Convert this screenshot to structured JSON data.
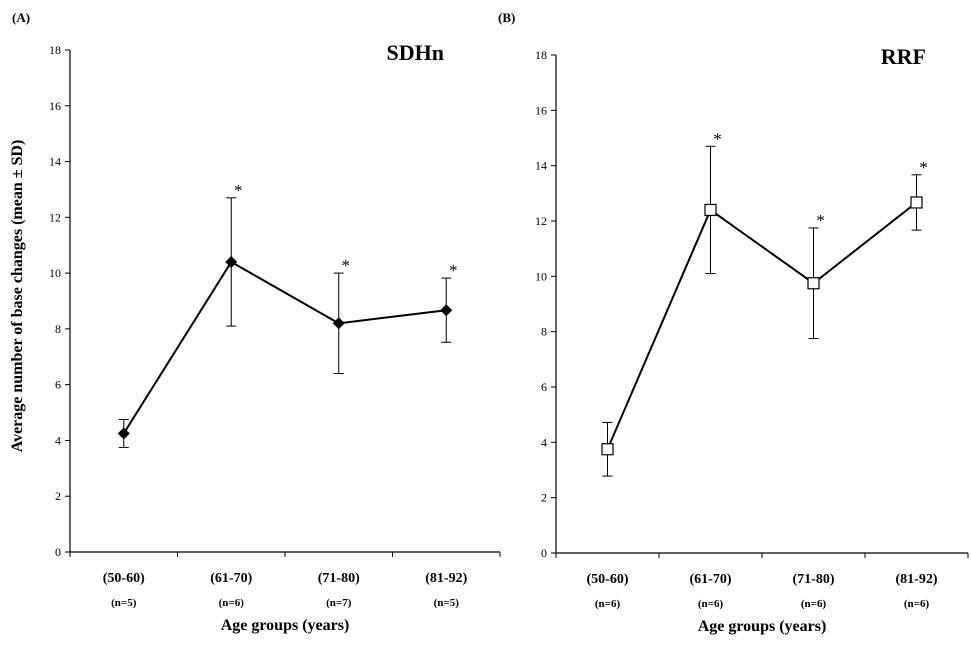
{
  "y_axis_title": "Average number of base changes (mean ± SD)",
  "chart_data": [
    {
      "type": "line",
      "panel_label": "(A)",
      "title": "SDHn",
      "xlabel": "Age groups (years)",
      "ylabel": "Average number of base changes (mean ± SD)",
      "categories": [
        "(50-60)",
        "(61-70)",
        "(71-80)",
        "(81-92)"
      ],
      "sample_sizes": [
        "(n=5)",
        "(n=6)",
        "(n=7)",
        "(n=5)"
      ],
      "ylim": [
        0,
        18
      ],
      "yticks": [
        "0",
        "2",
        "4",
        "6",
        "8",
        "10",
        "12",
        "14",
        "16",
        "18"
      ],
      "grid": false,
      "series": [
        {
          "marker": "filled-diamond",
          "values": [
            4.25,
            10.4,
            8.2,
            8.67
          ],
          "sd": [
            0.5,
            2.3,
            1.8,
            1.15
          ],
          "significance": [
            "",
            "*",
            "*",
            "*"
          ]
        }
      ]
    },
    {
      "type": "line",
      "panel_label": "(B)",
      "title": "RRF",
      "xlabel": "Age groups (years)",
      "ylabel": "",
      "categories": [
        "(50-60)",
        "(61-70)",
        "(71-80)",
        "(81-92)"
      ],
      "sample_sizes": [
        "(n=6)",
        "(n=6)",
        "(n=6)",
        "(n=6)"
      ],
      "ylim": [
        0,
        18
      ],
      "yticks": [
        "0",
        "2",
        "4",
        "6",
        "8",
        "10",
        "12",
        "14",
        "16",
        "18"
      ],
      "grid": false,
      "series": [
        {
          "marker": "open-square",
          "values": [
            3.75,
            12.4,
            9.75,
            12.67
          ],
          "sd": [
            0.97,
            2.3,
            2.0,
            1.0
          ],
          "significance": [
            "",
            "*",
            "*",
            "*"
          ]
        }
      ]
    }
  ]
}
